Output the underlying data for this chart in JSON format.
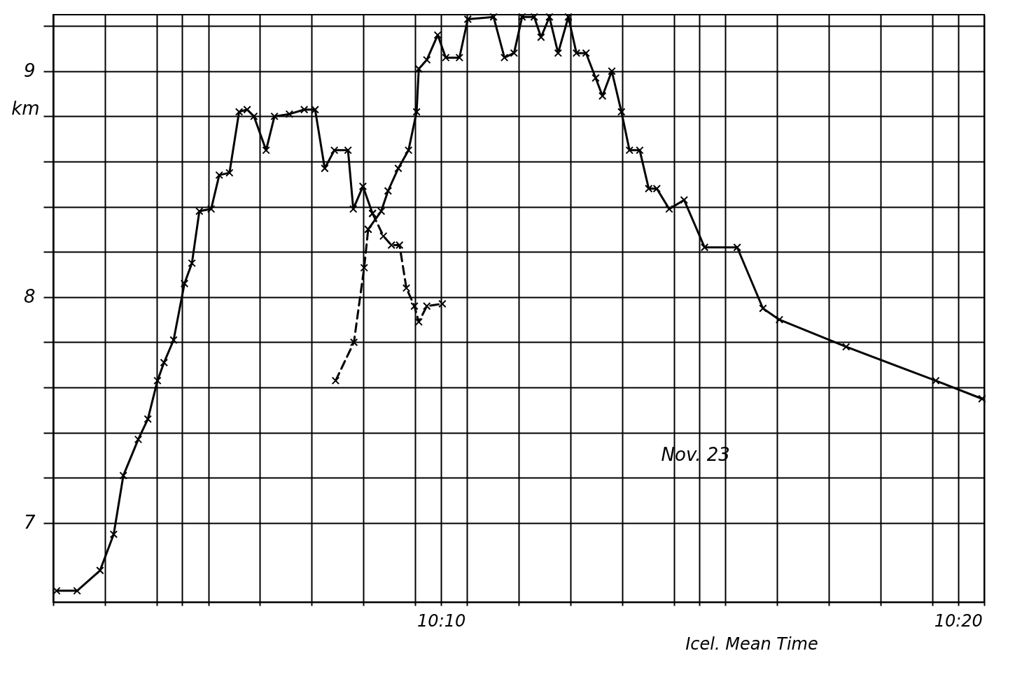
{
  "chart_data": {
    "type": "line",
    "xlabel": "Icel. Mean Time",
    "ylabel": "km",
    "annotations": [
      "Nov. 23"
    ],
    "xlim": [
      10.0417,
      10.3417
    ],
    "ylim": [
      6.65,
      9.25
    ],
    "xticks": [
      {
        "value": 10.0417,
        "label": null
      },
      {
        "value": 10.0583,
        "label": null
      },
      {
        "value": 10.075,
        "label": null
      },
      {
        "value": 10.0833,
        "label": null
      },
      {
        "value": 10.0917,
        "label": null
      },
      {
        "value": 10.1083,
        "label": null
      },
      {
        "value": 10.125,
        "label": null
      },
      {
        "value": 10.1417,
        "label": null
      },
      {
        "value": 10.1583,
        "label": null
      },
      {
        "value": 10.1667,
        "label": "10:10"
      },
      {
        "value": 10.175,
        "label": null
      },
      {
        "value": 10.1917,
        "label": null
      },
      {
        "value": 10.2083,
        "label": null
      },
      {
        "value": 10.225,
        "label": null
      },
      {
        "value": 10.2417,
        "label": null
      },
      {
        "value": 10.25,
        "label": null
      },
      {
        "value": 10.2583,
        "label": null
      },
      {
        "value": 10.275,
        "label": null
      },
      {
        "value": 10.2917,
        "label": null
      },
      {
        "value": 10.3083,
        "label": null
      },
      {
        "value": 10.325,
        "label": null
      },
      {
        "value": 10.3333,
        "label": "10:20"
      },
      {
        "value": 10.3417,
        "label": null
      }
    ],
    "yticks": [
      7,
      {
        "value": 7.2,
        "label": null
      },
      {
        "value": 7.4,
        "label": null
      },
      {
        "value": 7.6,
        "label": null
      },
      {
        "value": 7.8,
        "label": null
      },
      8,
      {
        "value": 8.2,
        "label": null
      },
      {
        "value": 8.4,
        "label": null
      },
      {
        "value": 8.6,
        "label": null
      },
      {
        "value": 8.8,
        "label": null
      },
      9,
      {
        "value": 9.2,
        "label": null
      }
    ],
    "grid": true,
    "marker": "cross",
    "series": [
      {
        "color": "#000000",
        "line_style": "solid",
        "x": [
          10.0428,
          10.0494,
          10.0568,
          10.0612,
          10.0643,
          10.0691,
          10.0722,
          10.0753,
          10.0774,
          10.0805,
          10.084,
          10.0864,
          10.0888,
          10.0926,
          10.0952,
          10.0985,
          10.1016,
          10.1042,
          10.1064,
          10.1103,
          10.113,
          10.1178,
          10.1226,
          10.1261,
          10.1292,
          10.1323,
          10.1367,
          10.1384,
          10.1415,
          10.1446
        ],
        "values": [
          6.7,
          6.7,
          6.79,
          6.95,
          7.21,
          7.37,
          7.46,
          7.63,
          7.71,
          7.81,
          8.06,
          8.15,
          8.38,
          8.39,
          8.54,
          8.55,
          8.82,
          8.83,
          8.8,
          8.65,
          8.8,
          8.81,
          8.83,
          8.83,
          8.57,
          8.65,
          8.65,
          8.39,
          8.49,
          8.37
        ]
      },
      {
        "color": "#000000",
        "line_style": "dashed",
        "x": [
          10.1446,
          10.1481,
          10.1507,
          10.1533,
          10.1555,
          10.1581,
          10.1595,
          10.1621,
          10.1671
        ],
        "values": [
          8.37,
          8.27,
          8.23,
          8.23,
          8.04,
          7.96,
          7.89,
          7.96,
          7.97
        ]
      },
      {
        "color": "#000000",
        "line_style": "dashed",
        "x": [
          10.1327,
          10.1386,
          10.1419,
          10.1432
        ],
        "values": [
          7.63,
          7.8,
          8.13,
          8.3
        ]
      },
      {
        "color": "#000000",
        "line_style": "solid",
        "x": [
          10.1432,
          10.1474,
          10.1496,
          10.1529,
          10.1562,
          10.1588,
          10.1595,
          10.1621,
          10.1656,
          10.1682,
          10.1726,
          10.1753,
          10.1836,
          10.1871,
          10.1902,
          10.1928,
          10.1967,
          10.1989,
          10.2016,
          10.2044,
          10.2077,
          10.2103,
          10.2134,
          10.2165,
          10.2187,
          10.2217,
          10.2248,
          10.2274,
          10.2307,
          10.2336,
          10.2362,
          10.2402,
          10.245,
          10.2516,
          10.2621,
          10.2704,
          10.2757,
          10.2972,
          10.3261,
          10.341
        ],
        "values": [
          8.3,
          8.38,
          8.47,
          8.57,
          8.65,
          8.82,
          9.01,
          9.05,
          9.16,
          9.06,
          9.06,
          9.23,
          9.24,
          9.06,
          9.08,
          9.24,
          9.24,
          9.15,
          9.24,
          9.08,
          9.24,
          9.08,
          9.08,
          8.97,
          8.89,
          9.0,
          8.82,
          8.65,
          8.65,
          8.48,
          8.48,
          8.39,
          8.43,
          8.22,
          8.22,
          7.95,
          7.9,
          7.78,
          7.63,
          7.55
        ]
      }
    ]
  }
}
